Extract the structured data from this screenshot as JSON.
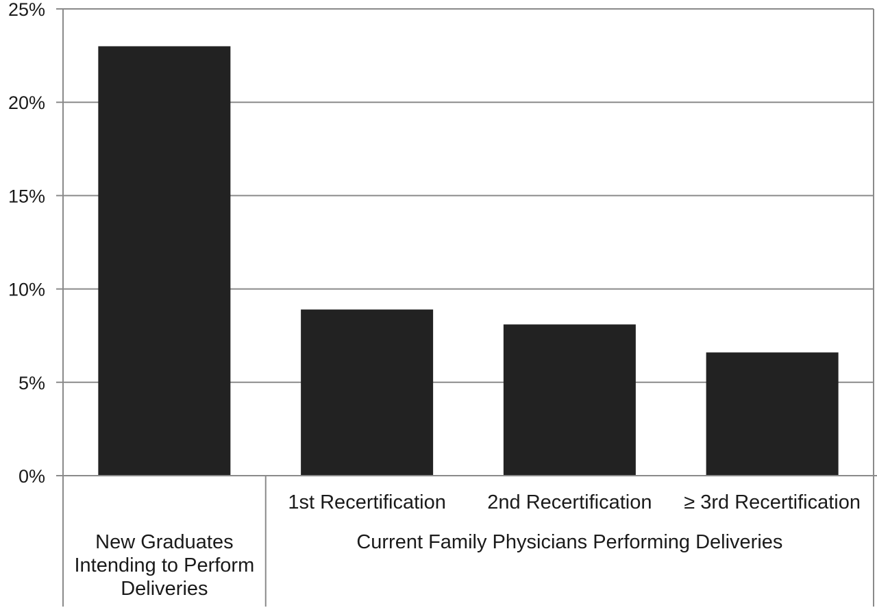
{
  "chart_data": {
    "type": "bar",
    "title": "",
    "xlabel": "",
    "ylabel": "",
    "ylim": [
      0,
      25
    ],
    "y_ticks": [
      0,
      5,
      10,
      15,
      20,
      25
    ],
    "y_tick_labels": [
      "0%",
      "5%",
      "10%",
      "15%",
      "20%",
      "25%"
    ],
    "grid": true,
    "bar_color": "#222222",
    "grid_color": "#8a8a8a",
    "categories": [
      "New Graduates Intending to Perform Deliveries",
      "1st Recertification",
      "2nd Recertification",
      "≥ 3rd Recertification"
    ],
    "category_label_lines": [
      [
        "New Graduates",
        "Intending to Perform",
        "Deliveries"
      ],
      [
        "1st Recertification"
      ],
      [
        "2nd Recertification"
      ],
      [
        "≥ 3rd Recertification"
      ]
    ],
    "values": [
      23.0,
      8.9,
      8.1,
      6.6
    ],
    "groups": [
      {
        "label": "",
        "categories": [
          0
        ]
      },
      {
        "label": "Current Family Physicians Performing Deliveries",
        "categories": [
          1,
          2,
          3
        ]
      }
    ]
  }
}
